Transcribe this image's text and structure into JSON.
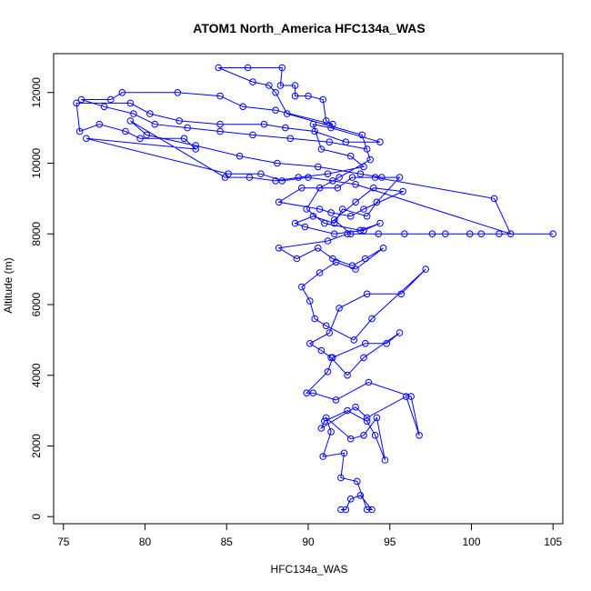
{
  "chart_data": {
    "type": "scatter",
    "title": "ATOM1 North_America HFC134a_WAS",
    "xlabel": "HFC134a_WAS",
    "ylabel": "Altitude (m)",
    "xlim": [
      74.4,
      105.6
    ],
    "ylim": [
      -200,
      13100
    ],
    "x_ticks": [
      75,
      80,
      85,
      90,
      95,
      100,
      105
    ],
    "y_ticks": [
      0,
      2000,
      4000,
      6000,
      8000,
      10000,
      12000
    ],
    "grid": false,
    "legend": "none",
    "series": [
      {
        "color": "#0000ff",
        "marker": "open-circle",
        "line": true,
        "points": [
          [
            92.0,
            200
          ],
          [
            92.3,
            200
          ],
          [
            92.6,
            500
          ],
          [
            93.2,
            600
          ],
          [
            93.9,
            200
          ],
          [
            93.6,
            200
          ],
          [
            93.0,
            1000
          ],
          [
            92.0,
            1100
          ],
          [
            92.2,
            1800
          ],
          [
            90.9,
            1700
          ],
          [
            91.4,
            2400
          ],
          [
            91.1,
            2800
          ],
          [
            92.6,
            2200
          ],
          [
            93.4,
            2300
          ],
          [
            94.2,
            2800
          ],
          [
            94.7,
            1600
          ],
          [
            94.1,
            2300
          ],
          [
            93.6,
            2700
          ],
          [
            92.4,
            3000
          ],
          [
            91.0,
            2700
          ],
          [
            90.8,
            2500
          ],
          [
            92.9,
            3100
          ],
          [
            93.6,
            2800
          ],
          [
            96.0,
            3400
          ],
          [
            96.8,
            2300
          ],
          [
            96.3,
            3400
          ],
          [
            93.7,
            3800
          ],
          [
            91.7,
            3300
          ],
          [
            90.3,
            3500
          ],
          [
            89.9,
            3500
          ],
          [
            91.2,
            4100
          ],
          [
            91.5,
            4500
          ],
          [
            93.5,
            4900
          ],
          [
            94.8,
            4900
          ],
          [
            95.6,
            5200
          ],
          [
            93.4,
            4500
          ],
          [
            92.4,
            4000
          ],
          [
            91.4,
            4500
          ],
          [
            90.8,
            4700
          ],
          [
            90.1,
            4900
          ],
          [
            91.3,
            5200
          ],
          [
            91.9,
            5900
          ],
          [
            93.6,
            6300
          ],
          [
            95.7,
            6300
          ],
          [
            97.2,
            7000
          ],
          [
            93.9,
            5600
          ],
          [
            92.8,
            5000
          ],
          [
            91.1,
            5400
          ],
          [
            90.4,
            5600
          ],
          [
            90.1,
            6100
          ],
          [
            89.6,
            6500
          ],
          [
            90.7,
            6900
          ],
          [
            91.7,
            7200
          ],
          [
            92.9,
            7000
          ],
          [
            94.6,
            7600
          ],
          [
            93.5,
            7300
          ],
          [
            92.7,
            7100
          ],
          [
            91.5,
            7300
          ],
          [
            90.6,
            7600
          ],
          [
            89.3,
            7300
          ],
          [
            88.2,
            7600
          ],
          [
            91.2,
            7800
          ],
          [
            92.4,
            8000
          ],
          [
            95.9,
            8000
          ],
          [
            97.6,
            8000
          ],
          [
            98.4,
            8000
          ],
          [
            99.9,
            8000
          ],
          [
            101.7,
            8000
          ],
          [
            105.0,
            8000
          ],
          [
            100.6,
            8000
          ],
          [
            94.3,
            8000
          ],
          [
            92.6,
            8000
          ],
          [
            91.6,
            8400
          ],
          [
            92.9,
            8900
          ],
          [
            94.0,
            9300
          ],
          [
            95.8,
            9200
          ],
          [
            93.4,
            8700
          ],
          [
            92.6,
            8500
          ],
          [
            91.4,
            8600
          ],
          [
            90.7,
            8700
          ],
          [
            88.2,
            8900
          ],
          [
            89.6,
            9300
          ],
          [
            91.8,
            9300
          ],
          [
            92.7,
            9600
          ],
          [
            94.1,
            9600
          ],
          [
            101.4,
            9000
          ],
          [
            102.4,
            8000
          ],
          [
            92.9,
            9400
          ],
          [
            91.5,
            9500
          ],
          [
            90.0,
            9600
          ],
          [
            88.4,
            9500
          ],
          [
            87.1,
            9700
          ],
          [
            85.1,
            9700
          ],
          [
            76.4,
            10700
          ],
          [
            83.1,
            10400
          ],
          [
            82.4,
            10700
          ],
          [
            79.7,
            10700
          ],
          [
            78.8,
            10900
          ],
          [
            77.2,
            11100
          ],
          [
            76.0,
            10900
          ],
          [
            75.8,
            11700
          ],
          [
            79.1,
            11700
          ],
          [
            80.3,
            11400
          ],
          [
            82.1,
            11200
          ],
          [
            84.6,
            11100
          ],
          [
            87.3,
            11100
          ],
          [
            88.6,
            11000
          ],
          [
            90.4,
            10900
          ],
          [
            92.3,
            10600
          ],
          [
            94.4,
            10600
          ],
          [
            91.4,
            11000
          ],
          [
            90.3,
            11100
          ],
          [
            90.8,
            10400
          ],
          [
            92.6,
            10200
          ],
          [
            93.4,
            9900
          ],
          [
            91.2,
            9700
          ],
          [
            89.4,
            9600
          ],
          [
            88.0,
            9500
          ],
          [
            86.4,
            9600
          ],
          [
            84.9,
            9600
          ],
          [
            79.1,
            11200
          ],
          [
            80.1,
            10800
          ],
          [
            83.1,
            10500
          ],
          [
            85.8,
            10200
          ],
          [
            88.1,
            10000
          ],
          [
            90.6,
            9900
          ],
          [
            93.2,
            9700
          ],
          [
            94.5,
            9600
          ],
          [
            95.6,
            9600
          ],
          [
            94.2,
            8900
          ],
          [
            93.6,
            8500
          ],
          [
            92.1,
            8700
          ],
          [
            91.6,
            8300
          ],
          [
            90.3,
            8500
          ],
          [
            89.2,
            8300
          ],
          [
            89.8,
            8200
          ],
          [
            91.6,
            8000
          ],
          [
            93.4,
            8100
          ],
          [
            94.4,
            8300
          ],
          [
            93.2,
            8100
          ],
          [
            91.0,
            8300
          ],
          [
            89.9,
            8700
          ],
          [
            90.7,
            9300
          ],
          [
            91.9,
            9600
          ],
          [
            93.8,
            10100
          ],
          [
            93.3,
            10800
          ],
          [
            88.7,
            11400
          ],
          [
            88.0,
            12000
          ],
          [
            87.6,
            12200
          ],
          [
            86.6,
            12300
          ],
          [
            84.5,
            12700
          ],
          [
            86.3,
            12700
          ],
          [
            88.4,
            12700
          ],
          [
            88.3,
            12200
          ],
          [
            89.2,
            12200
          ],
          [
            89.2,
            11900
          ],
          [
            90.0,
            11900
          ],
          [
            90.9,
            11800
          ],
          [
            91.1,
            11200
          ],
          [
            91.5,
            11100
          ],
          [
            88.0,
            11500
          ],
          [
            86.0,
            11600
          ],
          [
            84.6,
            11900
          ],
          [
            82.0,
            12000
          ],
          [
            78.6,
            12000
          ],
          [
            77.9,
            11800
          ],
          [
            76.1,
            11800
          ],
          [
            77.5,
            11600
          ],
          [
            79.3,
            11400
          ],
          [
            80.6,
            11100
          ],
          [
            82.6,
            11000
          ],
          [
            84.6,
            10900
          ],
          [
            86.6,
            10800
          ],
          [
            88.9,
            10700
          ],
          [
            91.3,
            10600
          ],
          [
            93.6,
            10400
          ]
        ]
      }
    ]
  }
}
